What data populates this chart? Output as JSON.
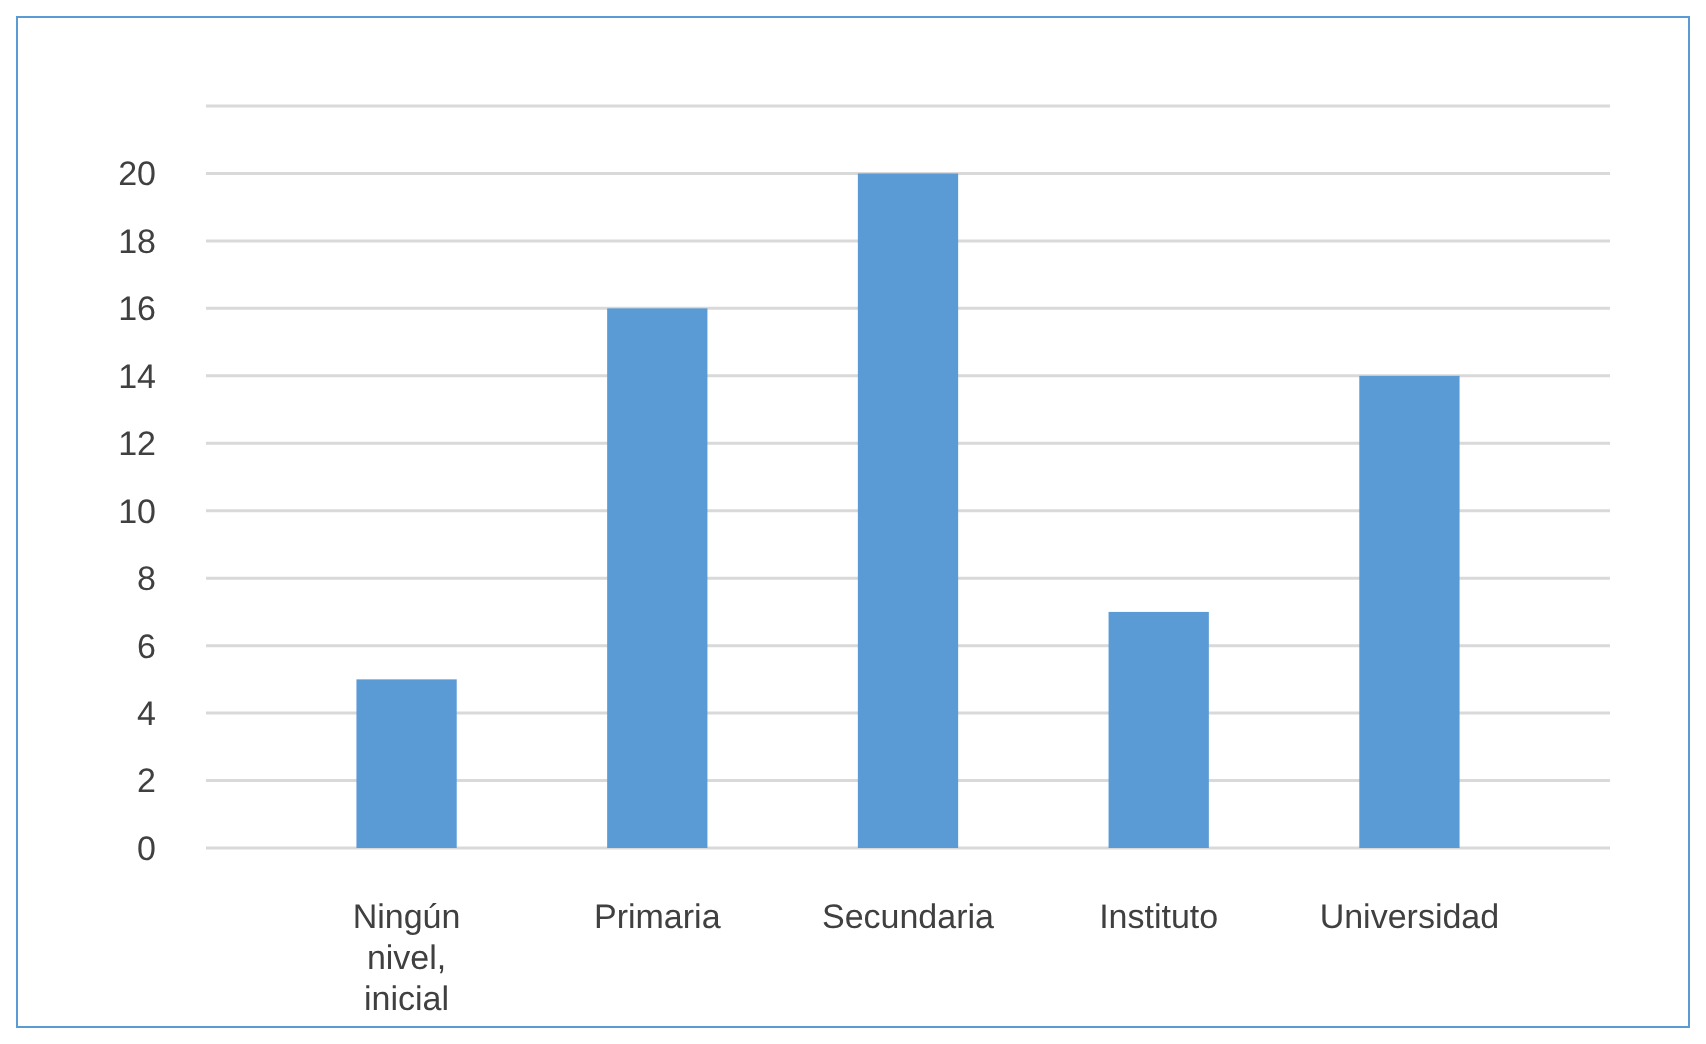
{
  "chart_data": {
    "type": "bar",
    "categories": [
      "Ningún nivel, inicial",
      "Primaria",
      "Secundaria",
      "Instituto",
      "Universidad"
    ],
    "values": [
      5,
      16,
      20,
      7,
      14
    ],
    "color": "#5b9bd5",
    "ylim": [
      0,
      22
    ],
    "yticks": [
      0,
      2,
      4,
      6,
      8,
      10,
      12,
      14,
      16,
      18,
      20,
      {
        "value": 22,
        "label": null
      }
    ],
    "grid": "y"
  }
}
